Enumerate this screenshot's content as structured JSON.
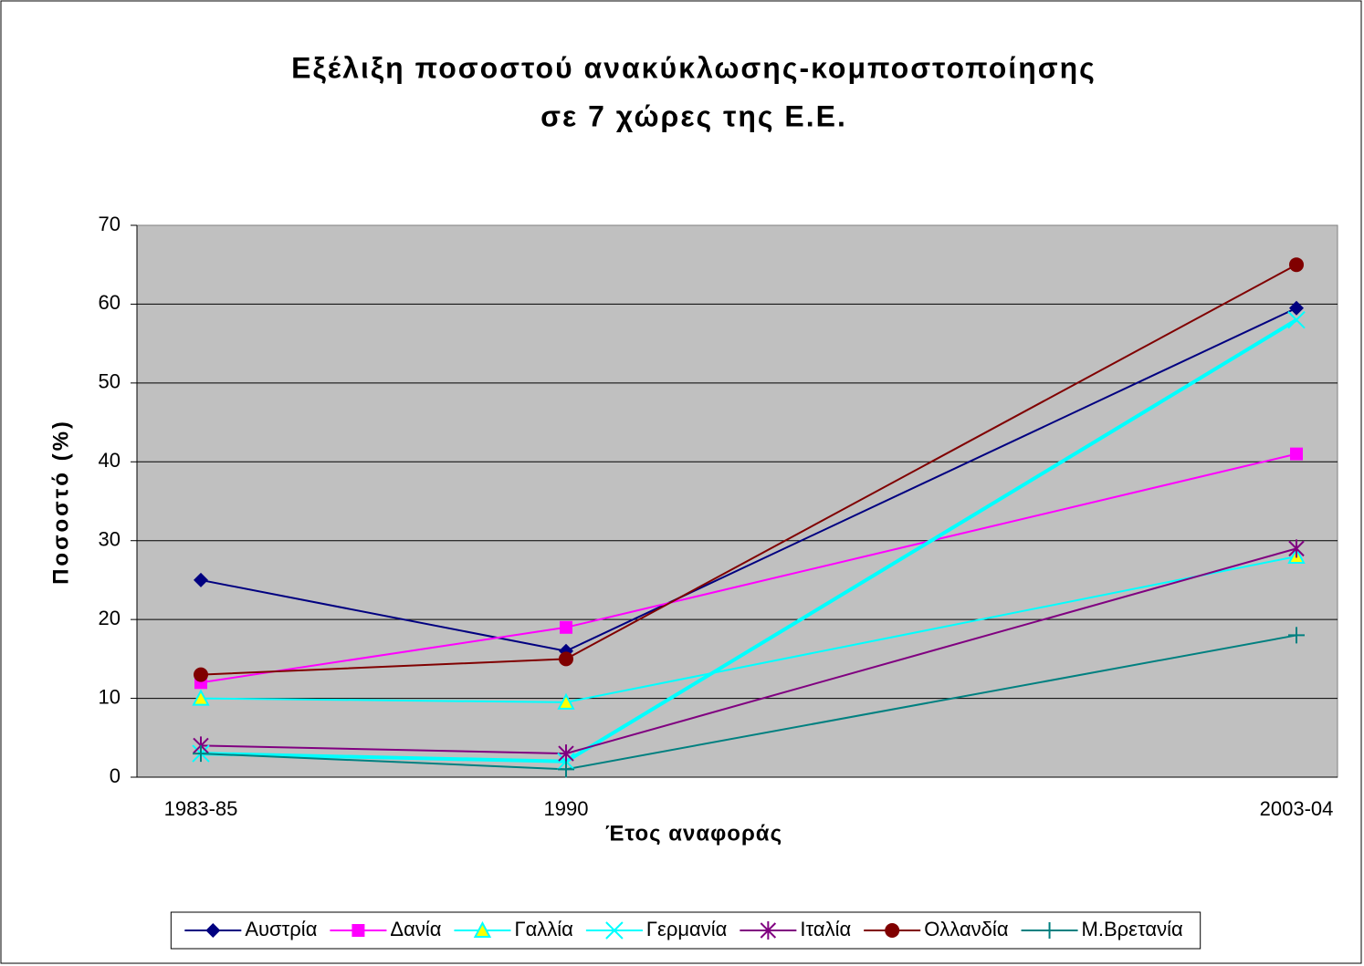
{
  "chart_data": {
    "type": "line",
    "title": [
      "Εξέλιξη ποσοστού ανακύκλωσης-κομποστοποίησης",
      "σε 7 χώρες της Ε.Ε."
    ],
    "x_label": "Έτος αναφοράς",
    "y_label": "Ποσοστό (%)",
    "categories": [
      "1983-85",
      "1990",
      "2003-04"
    ],
    "series": [
      {
        "name": "Αυστρία",
        "color": "#000080",
        "marker": "diamond",
        "values": [
          25,
          16,
          59.5
        ]
      },
      {
        "name": "Δανία",
        "color": "#ff00ff",
        "marker": "square",
        "values": [
          12,
          19,
          41
        ]
      },
      {
        "name": "Γαλλία",
        "color": "#00ffff",
        "marker": "triangle",
        "values": [
          10,
          9.5,
          28
        ]
      },
      {
        "name": "Γερμανία",
        "color": "#00ffff",
        "marker": "x",
        "values": [
          3,
          2,
          58
        ]
      },
      {
        "name": "Ιταλία",
        "color": "#800080",
        "marker": "star",
        "values": [
          4,
          3,
          29
        ]
      },
      {
        "name": "Ολλανδία",
        "color": "#800000",
        "marker": "circle",
        "values": [
          13,
          15,
          65
        ]
      },
      {
        "name": "Μ.Βρετανία",
        "color": "#008080",
        "marker": "plus",
        "values": [
          3,
          1,
          18
        ]
      }
    ],
    "ylim": [
      0,
      70
    ],
    "yticks": [
      0,
      10,
      20,
      30,
      40,
      50,
      60,
      70
    ],
    "grid": true,
    "legend": "bottom"
  }
}
